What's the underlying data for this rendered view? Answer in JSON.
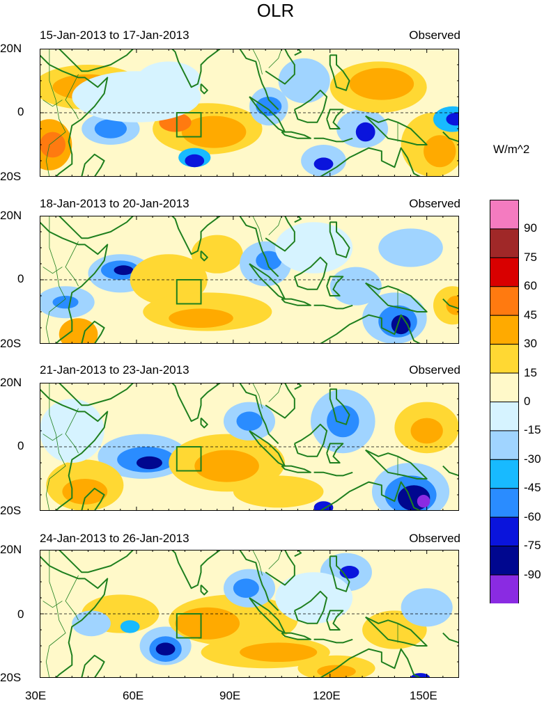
{
  "figure": {
    "title": "OLR",
    "units": "W/m^2"
  },
  "panels": [
    {
      "date_range": "15-Jan-2013 to 17-Jan-2013",
      "label": "Observed"
    },
    {
      "date_range": "18-Jan-2013 to 20-Jan-2013",
      "label": "Observed"
    },
    {
      "date_range": "21-Jan-2013 to 23-Jan-2013",
      "label": "Observed"
    },
    {
      "date_range": "24-Jan-2013 to 26-Jan-2013",
      "label": "Observed"
    }
  ],
  "axes": {
    "y_ticks": [
      "20N",
      "0",
      "20S"
    ],
    "x_ticks": [
      "30E",
      "60E",
      "90E",
      "120E",
      "150E"
    ]
  },
  "colorbar": {
    "labels": [
      "90",
      "75",
      "60",
      "45",
      "30",
      "15",
      "0",
      "-15",
      "-30",
      "-45",
      "-60",
      "-75",
      "-90"
    ],
    "colors": [
      "#f47bc0",
      "#a02828",
      "#d90000",
      "#ff7a10",
      "#ffaa00",
      "#ffd833",
      "#fff9c9",
      "#d6f3ff",
      "#a0d4ff",
      "#18baff",
      "#2a8cff",
      "#0a14dc",
      "#00078f",
      "#8a2be2"
    ]
  },
  "colors": {
    "coastline": "#1e7f1e",
    "background_zero": "#fff9c9"
  }
}
